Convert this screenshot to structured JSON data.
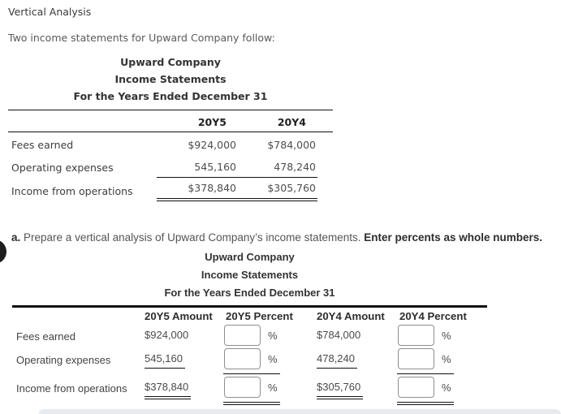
{
  "page": {
    "heading": "Vertical Analysis",
    "intro": "Two income statements for Upward Company follow:"
  },
  "statement": {
    "title_lines": [
      "Upward Company",
      "Income Statements",
      "For the Years Ended December 31"
    ],
    "columns": [
      "20Y5",
      "20Y4"
    ],
    "rows": [
      {
        "label": "Fees earned",
        "y5": "$924,000",
        "y4": "$784,000",
        "underline": "none"
      },
      {
        "label": "Operating expenses",
        "y5": "545,160",
        "y4": "478,240",
        "underline": "single"
      },
      {
        "label": "Income from operations",
        "y5": "$378,840",
        "y4": "$305,760",
        "underline": "double"
      }
    ]
  },
  "task": {
    "item_letter": "a.",
    "instruction": "Prepare a vertical analysis of Upward Company’s income statements.",
    "instruction_bold": "Enter percents as whole numbers."
  },
  "worksheet": {
    "title_lines": [
      "Upward Company",
      "Income Statements",
      "For the Years Ended December 31"
    ],
    "columns": [
      "20Y5 Amount",
      "20Y5 Percent",
      "20Y4 Amount",
      "20Y4 Percent"
    ],
    "percent_symbol": "%",
    "rows": [
      {
        "label": "Fees earned",
        "y5_amount": "$924,000",
        "y5_percent": "",
        "y4_amount": "$784,000",
        "y4_percent": "",
        "underline": "none"
      },
      {
        "label": "Operating expenses",
        "y5_amount": "545,160",
        "y5_percent": "",
        "y4_amount": "478,240",
        "y4_percent": "",
        "underline": "single"
      },
      {
        "label": "Income from operations",
        "y5_amount": "$378,840",
        "y5_percent": "",
        "y4_amount": "$305,760",
        "y4_percent": "",
        "underline": "double"
      }
    ]
  },
  "colors": {
    "text_primary": "#333333",
    "text_secondary": "#555555",
    "rule": "#111111",
    "input_border": "#8f8f8f",
    "footer_bar": "#e8ebee"
  }
}
